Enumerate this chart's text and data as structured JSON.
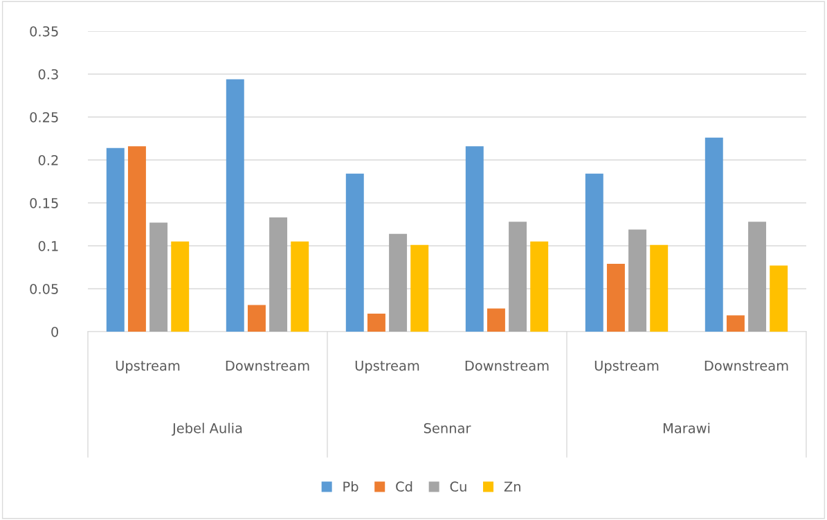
{
  "chart_data": {
    "type": "bar",
    "categories": [
      "Upstream",
      "Downstream",
      "Upstream",
      "Downstream",
      "Upstream",
      "Downstream"
    ],
    "annotations": [
      "Jebel Aulia",
      "Sennar",
      "Marawi"
    ],
    "series": [
      {
        "name": "Pb",
        "color": "#5b9bd5",
        "values": [
          0.214,
          0.294,
          0.184,
          0.216,
          0.184,
          0.226
        ]
      },
      {
        "name": "Cd",
        "color": "#ed7d31",
        "values": [
          0.216,
          0.031,
          0.021,
          0.027,
          0.079,
          0.019
        ]
      },
      {
        "name": "Cu",
        "color": "#a5a5a5",
        "values": [
          0.127,
          0.133,
          0.114,
          0.128,
          0.119,
          0.128
        ]
      },
      {
        "name": "Zn",
        "color": "#ffc000",
        "values": [
          0.105,
          0.105,
          0.101,
          0.105,
          0.101,
          0.077
        ]
      }
    ],
    "ylim": [
      0,
      0.35
    ],
    "yticks": [
      0,
      0.05,
      0.1,
      0.15,
      0.2,
      0.25,
      0.3,
      0.35
    ],
    "grid": "y",
    "legend": "bottom"
  }
}
